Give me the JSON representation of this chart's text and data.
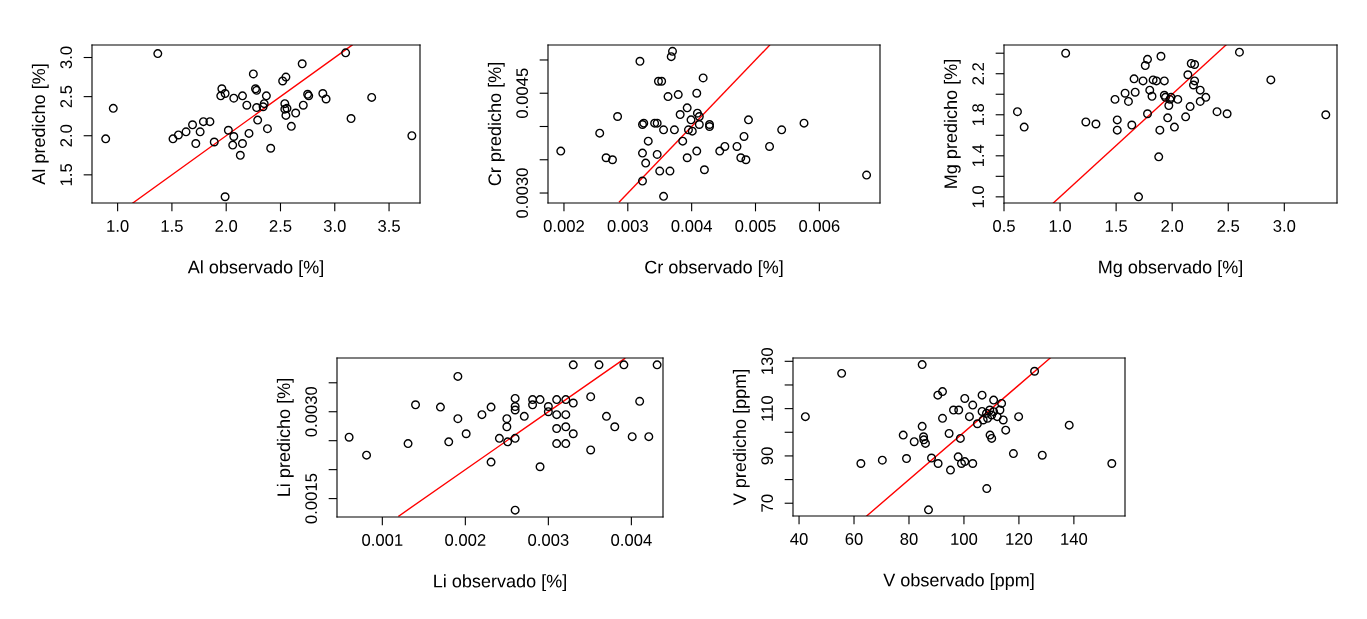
{
  "chart_data": [
    {
      "type": "scatter",
      "xlabel": "Al observado [%]",
      "ylabel": "Al predicho [%]",
      "xlim": [
        0.764,
        3.785
      ],
      "ylim": [
        1.14,
        3.16
      ],
      "xticks": [
        {
          "value": 1,
          "label": "1.0"
        },
        1.5,
        {
          "value": 2,
          "label": "2.0"
        },
        2.5,
        {
          "value": 3,
          "label": "3.0"
        },
        3.5
      ],
      "yticks": [
        1.5,
        {
          "value": 2,
          "label": "2.0"
        },
        2.5,
        {
          "value": 3,
          "label": "3.0"
        }
      ],
      "series": [
        {
          "marker": "circle",
          "color": "#000000",
          "x": [
            0.89,
            0.96,
            1.37,
            1.51,
            1.56,
            1.63,
            1.69,
            1.76,
            1.72,
            1.79,
            1.85,
            1.89,
            1.96,
            1.95,
            1.99,
            1.99,
            2.02,
            2.07,
            2.07,
            2.06,
            2.15,
            2.15,
            2.13,
            2.19,
            2.21,
            2.25,
            2.27,
            2.28,
            2.29,
            2.28,
            2.34,
            2.35,
            2.37,
            2.38,
            2.41,
            2.52,
            2.55,
            2.54,
            2.54,
            2.55,
            2.56,
            2.6,
            2.64,
            2.7,
            2.71,
            2.75,
            2.76,
            2.89,
            2.92,
            3.1,
            3.15,
            3.34,
            3.71
          ],
          "values": [
            1.96,
            2.35,
            3.05,
            1.96,
            2.01,
            2.05,
            2.14,
            2.05,
            1.9,
            2.18,
            2.18,
            1.92,
            2.6,
            2.51,
            2.54,
            1.22,
            2.07,
            2.48,
            1.99,
            1.88,
            2.51,
            1.9,
            1.75,
            2.39,
            2.03,
            2.79,
            2.6,
            2.58,
            2.2,
            2.36,
            2.37,
            2.41,
            2.51,
            2.09,
            1.84,
            2.7,
            2.75,
            2.41,
            2.34,
            2.26,
            2.35,
            2.12,
            2.29,
            2.92,
            2.39,
            2.53,
            2.51,
            2.54,
            2.47,
            3.06,
            2.22,
            2.49,
            2.0
          ]
        },
        {
          "type": "line",
          "color": "#ff0000",
          "x": [
            1.14,
            3.16
          ],
          "values": [
            1.14,
            3.16
          ]
        }
      ]
    },
    {
      "type": "scatter",
      "xlabel": "Cr observado [%]",
      "ylabel": "Cr predicho [%]",
      "xlim": [
        0.00175,
        0.00695
      ],
      "ylim": [
        0.00285,
        0.005225
      ],
      "xticks": [
        0.002,
        0.003,
        0.004,
        0.005,
        0.006
      ],
      "yticks": [
        {
          "value": 0.003,
          "label": "0.0030"
        },
        {
          "value": 0.0035,
          "label": null
        },
        {
          "value": 0.004,
          "label": null
        },
        0.0045,
        {
          "value": 0.005,
          "label": null
        }
      ],
      "series": [
        {
          "marker": "circle",
          "color": "#000000",
          "x": [
            0.00195,
            0.00256,
            0.00266,
            0.00276,
            0.00284,
            0.00319,
            0.00323,
            0.00325,
            0.00323,
            0.00328,
            0.00323,
            0.00332,
            0.00342,
            0.00346,
            0.00346,
            0.00348,
            0.00353,
            0.0035,
            0.00356,
            0.00356,
            0.00363,
            0.00366,
            0.00368,
            0.0037,
            0.00373,
            0.00379,
            0.00382,
            0.00386,
            0.00393,
            0.00393,
            0.00395,
            0.00401,
            0.00399,
            0.00408,
            0.00408,
            0.00409,
            0.00412,
            0.00412,
            0.00418,
            0.0042,
            0.00428,
            0.00428,
            0.00444,
            0.00452,
            0.00471,
            0.00477,
            0.00482,
            0.00485,
            0.00489,
            0.00522,
            0.00541,
            0.00576,
            0.00674
          ],
          "values": [
            0.00363,
            0.0039,
            0.00353,
            0.0035,
            0.00415,
            0.00498,
            0.00403,
            0.00405,
            0.0036,
            0.00345,
            0.00318,
            0.00378,
            0.00405,
            0.00405,
            0.00358,
            0.00468,
            0.00468,
            0.00333,
            0.00395,
            0.00295,
            0.00445,
            0.00333,
            0.00505,
            0.00513,
            0.00395,
            0.00448,
            0.00418,
            0.00378,
            0.00428,
            0.00353,
            0.00395,
            0.00393,
            0.0041,
            0.0045,
            0.00363,
            0.0042,
            0.00415,
            0.00403,
            0.00473,
            0.00335,
            0.00403,
            0.004,
            0.00363,
            0.0037,
            0.0037,
            0.00353,
            0.00385,
            0.0035,
            0.0041,
            0.0037,
            0.00395,
            0.00405,
            0.00327
          ]
        },
        {
          "type": "line",
          "color": "#ff0000",
          "x": [
            0.00287,
            0.00522
          ],
          "values": [
            0.00287,
            0.00522
          ]
        }
      ]
    },
    {
      "type": "scatter",
      "xlabel": "Mg observado [%]",
      "ylabel": "Mg predicho [%]",
      "xlim": [
        0.5,
        3.47
      ],
      "ylim": [
        0.94,
        2.48
      ],
      "xticks": [
        0.5,
        {
          "value": 1,
          "label": "1.0"
        },
        1.5,
        {
          "value": 2,
          "label": "2.0"
        },
        2.5,
        {
          "value": 3,
          "label": "3.0"
        }
      ],
      "yticks": [
        {
          "value": 1,
          "label": "1.0"
        },
        {
          "value": 1.2,
          "label": null
        },
        1.4,
        {
          "value": 1.6,
          "label": null
        },
        1.8,
        {
          "value": 2.0,
          "label": null
        },
        2.2,
        {
          "value": 2.4,
          "label": null
        }
      ],
      "series": [
        {
          "marker": "circle",
          "color": "#000000",
          "x": [
            0.62,
            0.68,
            1.05,
            1.23,
            1.32,
            1.49,
            1.51,
            1.51,
            1.58,
            1.61,
            1.64,
            1.66,
            1.67,
            1.7,
            1.74,
            1.76,
            1.78,
            1.78,
            1.8,
            1.82,
            1.83,
            1.86,
            1.88,
            1.89,
            1.9,
            1.93,
            1.93,
            1.94,
            1.96,
            1.97,
            1.98,
            1.99,
            2.02,
            2.05,
            2.12,
            2.14,
            2.16,
            2.17,
            2.2,
            2.2,
            2.19,
            2.25,
            2.25,
            2.3,
            2.4,
            2.49,
            2.6,
            2.88,
            3.37
          ],
          "values": [
            1.83,
            1.68,
            2.4,
            1.73,
            1.71,
            1.95,
            1.75,
            1.65,
            2.01,
            1.93,
            1.7,
            2.15,
            2.02,
            1.0,
            2.13,
            2.28,
            2.34,
            1.81,
            2.04,
            1.98,
            2.14,
            2.13,
            1.39,
            1.65,
            2.37,
            2.13,
            1.99,
            1.97,
            1.77,
            1.89,
            1.95,
            1.97,
            1.68,
            1.95,
            1.78,
            2.19,
            1.88,
            2.3,
            2.29,
            2.13,
            2.09,
            2.04,
            1.93,
            1.97,
            1.83,
            1.81,
            2.41,
            2.14,
            1.8
          ]
        },
        {
          "type": "line",
          "color": "#ff0000",
          "x": [
            0.94,
            2.48
          ],
          "values": [
            0.94,
            2.48
          ]
        }
      ]
    },
    {
      "type": "scatter",
      "xlabel": "Li observado [%]",
      "ylabel": "Li predicho [%]",
      "xlim": [
        0.000454,
        0.004381
      ],
      "ylim": [
        0.001182,
        0.003928
      ],
      "xticks": [
        0.001,
        0.002,
        0.003,
        0.004
      ],
      "yticks": [
        0.0015,
        {
          "value": 0.002,
          "label": null
        },
        {
          "value": 0.0025,
          "label": null
        },
        {
          "value": 0.003,
          "label": "0.0030"
        },
        {
          "value": 0.0035,
          "label": null
        }
      ],
      "series": [
        {
          "marker": "circle",
          "color": "#000000",
          "x": [
            0.0006,
            0.00081,
            0.00131,
            0.0014,
            0.0017,
            0.0018,
            0.00191,
            0.00191,
            0.00201,
            0.0022,
            0.00231,
            0.00231,
            0.00241,
            0.0025,
            0.0025,
            0.00251,
            0.0026,
            0.0026,
            0.0026,
            0.0026,
            0.0026,
            0.00271,
            0.00281,
            0.00281,
            0.0029,
            0.0029,
            0.003,
            0.003,
            0.0031,
            0.0031,
            0.0031,
            0.0031,
            0.00321,
            0.00321,
            0.00321,
            0.00321,
            0.0033,
            0.0033,
            0.0033,
            0.00351,
            0.00351,
            0.00361,
            0.0037,
            0.0038,
            0.00391,
            0.00401,
            0.0041,
            0.00421,
            0.00431
          ],
          "values": [
            0.00256,
            0.00225,
            0.00245,
            0.00312,
            0.00308,
            0.00248,
            0.00361,
            0.00288,
            0.00262,
            0.00295,
            0.00308,
            0.00213,
            0.00254,
            0.00288,
            0.00274,
            0.00248,
            0.00323,
            0.00309,
            0.00303,
            0.00254,
            0.0013,
            0.00292,
            0.00321,
            0.00312,
            0.00321,
            0.00205,
            0.00309,
            0.003,
            0.00321,
            0.00295,
            0.00271,
            0.00245,
            0.00321,
            0.00295,
            0.00274,
            0.00245,
            0.00381,
            0.00315,
            0.00262,
            0.00326,
            0.00234,
            0.00381,
            0.00292,
            0.00274,
            0.00381,
            0.00257,
            0.00318,
            0.00257,
            0.00381
          ]
        },
        {
          "type": "line",
          "color": "#ff0000",
          "x": [
            0.0012,
            0.00392
          ],
          "values": [
            0.0012,
            0.00392
          ]
        }
      ]
    },
    {
      "type": "scatter",
      "xlabel": "V observado [ppm]",
      "ylabel": "V predicho [ppm]",
      "xlim": [
        37.8,
        158.6
      ],
      "ylim": [
        64.6,
        131.4
      ],
      "xticks": [
        40,
        60,
        80,
        100,
        120,
        140
      ],
      "yticks": [
        70,
        {
          "value": 80,
          "label": null
        },
        90,
        {
          "value": 100,
          "label": null
        },
        110,
        {
          "value": 120,
          "label": null
        },
        130
      ],
      "series": [
        {
          "marker": "circle",
          "color": "#000000",
          "x": [
            42.3,
            55.5,
            62.5,
            70.3,
            77.9,
            79.1,
            81.9,
            84.8,
            84.8,
            85.3,
            85.4,
            86.0,
            87.1,
            88.2,
            90.5,
            90.6,
            92.2,
            92.2,
            94.6,
            95.1,
            96.2,
            98.1,
            97.9,
            98.7,
            99.1,
            100.3,
            100.3,
            102.0,
            103.2,
            103.2,
            104.9,
            106.6,
            106.6,
            107.0,
            108.2,
            108.6,
            108.3,
            109.4,
            109.5,
            110.1,
            110.1,
            110.8,
            110.8,
            112.1,
            113.1,
            113.7,
            114.3,
            115.2,
            118.0,
            119.9,
            125.7,
            128.5,
            138.3,
            153.8
          ],
          "values": [
            106.6,
            124.9,
            86.8,
            88.2,
            98.8,
            88.9,
            96.0,
            102.5,
            128.6,
            98.1,
            96.8,
            95.3,
            67.2,
            89.1,
            115.7,
            86.8,
            117.2,
            105.9,
            99.5,
            84.0,
            109.4,
            109.4,
            89.6,
            97.4,
            86.8,
            87.6,
            114.3,
            106.6,
            86.8,
            111.5,
            103.6,
            115.7,
            108.8,
            105.2,
            108.0,
            105.9,
            76.2,
            109.4,
            98.8,
            97.4,
            107.3,
            113.6,
            108.7,
            106.6,
            109.4,
            112.2,
            105.2,
            100.9,
            91.0,
            106.6,
            125.8,
            90.3,
            103.0,
            86.8
          ]
        },
        {
          "type": "line",
          "color": "#ff0000",
          "x": [
            64.6,
            131.4
          ],
          "values": [
            64.6,
            131.4
          ]
        }
      ]
    }
  ]
}
